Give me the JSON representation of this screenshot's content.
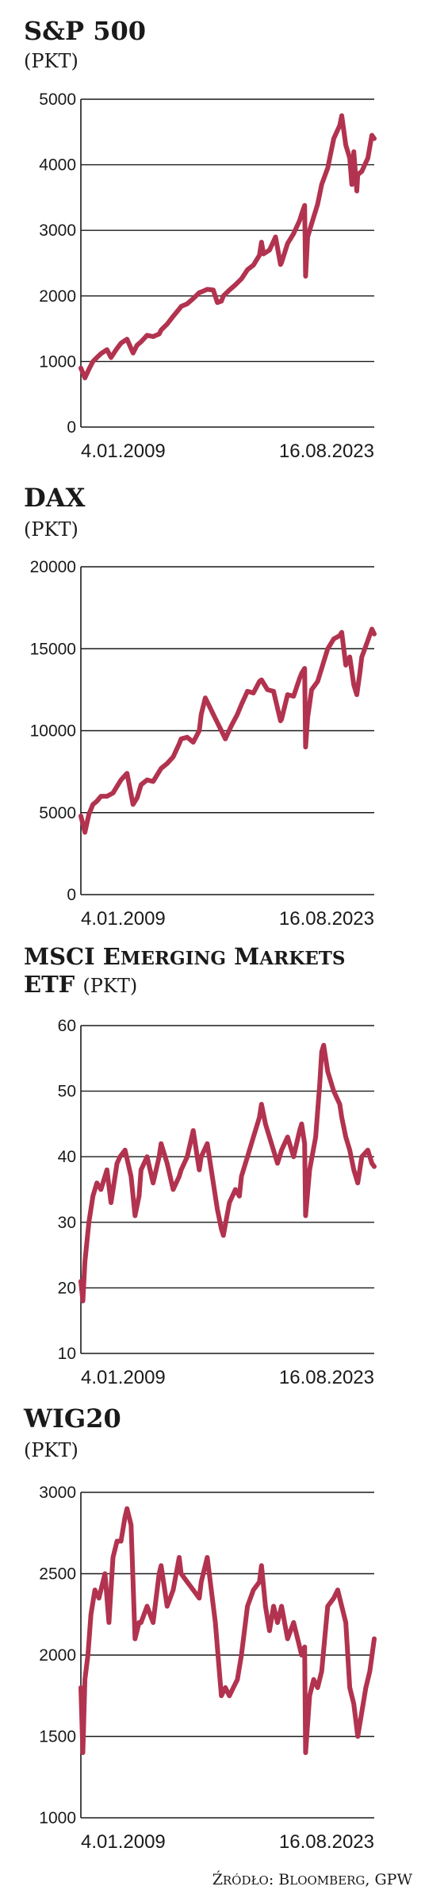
{
  "source": "Źródło: Bloomberg, GPW",
  "colors": {
    "line": "#b2334f",
    "text": "#1a1a1a"
  },
  "chart_data": [
    {
      "type": "line",
      "title": "S&P 500",
      "unit": "(PKT)",
      "x_labels": [
        "4.01.2009",
        "16.08.2023"
      ],
      "y_ticks": [
        "0",
        "1000",
        "2000",
        "3000",
        "4000",
        "5000"
      ],
      "ylim": [
        0,
        5000
      ],
      "grid": true,
      "series": [
        {
          "x": [
            2009.0,
            2009.2,
            2009.4,
            2009.6,
            2009.8,
            2010.0,
            2010.3,
            2010.5,
            2010.8,
            2011.0,
            2011.3,
            2011.6,
            2011.8,
            2012.0,
            2012.3,
            2012.6,
            2012.9,
            2013.0,
            2013.3,
            2013.6,
            2013.9,
            2014.0,
            2014.3,
            2014.6,
            2014.9,
            2015.0,
            2015.3,
            2015.6,
            2015.8,
            2016.0,
            2016.1,
            2016.4,
            2016.7,
            2017.0,
            2017.3,
            2017.6,
            2017.9,
            2018.0,
            2018.1,
            2018.4,
            2018.7,
            2018.95,
            2019.0,
            2019.3,
            2019.6,
            2019.9,
            2020.0,
            2020.15,
            2020.2,
            2020.3,
            2020.5,
            2020.8,
            2021.0,
            2021.3,
            2021.6,
            2021.9,
            2022.0,
            2022.2,
            2022.4,
            2022.5,
            2022.6,
            2022.75,
            2022.8,
            2023.0,
            2023.3,
            2023.5,
            2023.62
          ],
          "y": [
            900,
            750,
            880,
            1000,
            1060,
            1120,
            1180,
            1060,
            1200,
            1280,
            1340,
            1130,
            1250,
            1300,
            1400,
            1380,
            1420,
            1480,
            1570,
            1690,
            1800,
            1840,
            1880,
            1960,
            2050,
            2060,
            2100,
            2090,
            1900,
            1920,
            2000,
            2090,
            2170,
            2260,
            2400,
            2470,
            2620,
            2820,
            2640,
            2700,
            2900,
            2480,
            2510,
            2800,
            2950,
            3150,
            3250,
            3380,
            2300,
            2900,
            3100,
            3400,
            3700,
            3950,
            4400,
            4600,
            4750,
            4300,
            4100,
            3700,
            4200,
            3600,
            3850,
            3900,
            4100,
            4450,
            4400
          ]
        }
      ]
    },
    {
      "type": "line",
      "title": "DAX",
      "unit": "(PKT)",
      "x_labels": [
        "4.01.2009",
        "16.08.2023"
      ],
      "y_ticks": [
        "0",
        "5000",
        "10000",
        "15000",
        "20000"
      ],
      "ylim": [
        0,
        20000
      ],
      "grid": true,
      "series": [
        {
          "x": [
            2009.0,
            2009.2,
            2009.4,
            2009.6,
            2009.8,
            2010.0,
            2010.3,
            2010.6,
            2010.9,
            2011.0,
            2011.3,
            2011.6,
            2011.8,
            2012.0,
            2012.3,
            2012.6,
            2012.9,
            2013.0,
            2013.3,
            2013.6,
            2013.9,
            2014.0,
            2014.3,
            2014.6,
            2014.9,
            2015.0,
            2015.2,
            2015.4,
            2015.6,
            2015.8,
            2016.0,
            2016.2,
            2016.5,
            2016.8,
            2017.0,
            2017.3,
            2017.6,
            2017.9,
            2018.0,
            2018.3,
            2018.6,
            2018.95,
            2019.0,
            2019.3,
            2019.6,
            2019.9,
            2020.0,
            2020.15,
            2020.2,
            2020.3,
            2020.5,
            2020.8,
            2021.0,
            2021.3,
            2021.6,
            2021.9,
            2022.0,
            2022.2,
            2022.4,
            2022.6,
            2022.75,
            2022.9,
            2023.0,
            2023.3,
            2023.5,
            2023.62
          ],
          "y": [
            4800,
            3800,
            4900,
            5500,
            5700,
            6000,
            6000,
            6200,
            6800,
            7000,
            7400,
            5500,
            5900,
            6700,
            7000,
            6900,
            7500,
            7700,
            8000,
            8400,
            9200,
            9500,
            9600,
            9300,
            10000,
            11000,
            12000,
            11500,
            11000,
            10500,
            10000,
            9500,
            10300,
            11000,
            11600,
            12400,
            12300,
            13000,
            13100,
            12500,
            12400,
            10600,
            10700,
            12200,
            12100,
            13200,
            13500,
            13800,
            9000,
            10800,
            12500,
            13000,
            13800,
            15000,
            15600,
            15800,
            16000,
            14000,
            14500,
            12800,
            12200,
            13500,
            14500,
            15500,
            16200,
            15900
          ]
        }
      ]
    },
    {
      "type": "line",
      "title": "MSCI Emerging Markets ETF",
      "unit": "(PKT)",
      "x_labels": [
        "4.01.2009",
        "16.08.2023"
      ],
      "y_ticks": [
        "10",
        "20",
        "30",
        "40",
        "50",
        "60"
      ],
      "ylim": [
        10,
        60
      ],
      "grid": true,
      "series": [
        {
          "x": [
            2009.0,
            2009.1,
            2009.2,
            2009.4,
            2009.6,
            2009.8,
            2010.0,
            2010.3,
            2010.5,
            2010.8,
            2010.95,
            2011.2,
            2011.5,
            2011.7,
            2011.9,
            2012.0,
            2012.3,
            2012.6,
            2012.9,
            2013.0,
            2013.3,
            2013.6,
            2013.9,
            2014.0,
            2014.3,
            2014.6,
            2014.9,
            2015.0,
            2015.3,
            2015.6,
            2015.8,
            2016.0,
            2016.1,
            2016.4,
            2016.7,
            2016.9,
            2017.0,
            2017.3,
            2017.6,
            2017.9,
            2018.0,
            2018.2,
            2018.5,
            2018.8,
            2019.0,
            2019.3,
            2019.6,
            2019.9,
            2020.0,
            2020.15,
            2020.2,
            2020.4,
            2020.7,
            2020.9,
            2021.0,
            2021.1,
            2021.3,
            2021.6,
            2021.9,
            2022.0,
            2022.2,
            2022.4,
            2022.6,
            2022.8,
            2023.0,
            2023.3,
            2023.5,
            2023.62
          ],
          "y": [
            21,
            18,
            24,
            30,
            34,
            36,
            35,
            38,
            33,
            39,
            40,
            41,
            37,
            31,
            34,
            38,
            40,
            36,
            40,
            42,
            39,
            35,
            37,
            38,
            40,
            44,
            38,
            40,
            42,
            36,
            32,
            29,
            28,
            33,
            35,
            34,
            37,
            40,
            43,
            46,
            48,
            45,
            42,
            39,
            41,
            43,
            40,
            44,
            45,
            42,
            31,
            38,
            43,
            51,
            56,
            57,
            53,
            50,
            48,
            46,
            43,
            41,
            38,
            36,
            40,
            41,
            39,
            38.5
          ]
        }
      ]
    },
    {
      "type": "line",
      "title": "WIG20",
      "unit": "(PKT)",
      "x_labels": [
        "4.01.2009",
        "16.08.2023"
      ],
      "y_ticks": [
        "1000",
        "1500",
        "2000",
        "2500",
        "3000"
      ],
      "ylim": [
        1000,
        3000
      ],
      "grid": true,
      "series": [
        {
          "x": [
            2009.0,
            2009.1,
            2009.2,
            2009.35,
            2009.5,
            2009.7,
            2009.9,
            2010.0,
            2010.2,
            2010.4,
            2010.6,
            2010.8,
            2011.0,
            2011.2,
            2011.3,
            2011.5,
            2011.7,
            2011.9,
            2012.0,
            2012.3,
            2012.6,
            2012.9,
            2013.0,
            2013.3,
            2013.6,
            2013.9,
            2014.0,
            2014.3,
            2014.6,
            2014.9,
            2015.0,
            2015.3,
            2015.5,
            2015.7,
            2015.9,
            2016.0,
            2016.2,
            2016.4,
            2016.6,
            2016.8,
            2017.0,
            2017.3,
            2017.6,
            2017.9,
            2018.0,
            2018.2,
            2018.4,
            2018.6,
            2018.8,
            2019.0,
            2019.3,
            2019.6,
            2019.9,
            2020.0,
            2020.15,
            2020.2,
            2020.4,
            2020.6,
            2020.8,
            2021.0,
            2021.3,
            2021.6,
            2021.8,
            2022.0,
            2022.2,
            2022.4,
            2022.6,
            2022.8,
            2023.0,
            2023.2,
            2023.4,
            2023.62
          ],
          "y": [
            1800,
            1400,
            1850,
            2000,
            2250,
            2400,
            2350,
            2400,
            2500,
            2200,
            2600,
            2700,
            2700,
            2850,
            2900,
            2800,
            2100,
            2200,
            2200,
            2300,
            2200,
            2500,
            2550,
            2300,
            2400,
            2600,
            2500,
            2450,
            2400,
            2350,
            2450,
            2600,
            2400,
            2200,
            1900,
            1750,
            1800,
            1750,
            1800,
            1850,
            2000,
            2300,
            2400,
            2450,
            2550,
            2300,
            2150,
            2300,
            2200,
            2300,
            2100,
            2200,
            2050,
            2000,
            2050,
            1400,
            1750,
            1850,
            1800,
            1900,
            2300,
            2350,
            2400,
            2300,
            2200,
            1800,
            1700,
            1500,
            1650,
            1800,
            1900,
            2100
          ]
        }
      ]
    }
  ]
}
